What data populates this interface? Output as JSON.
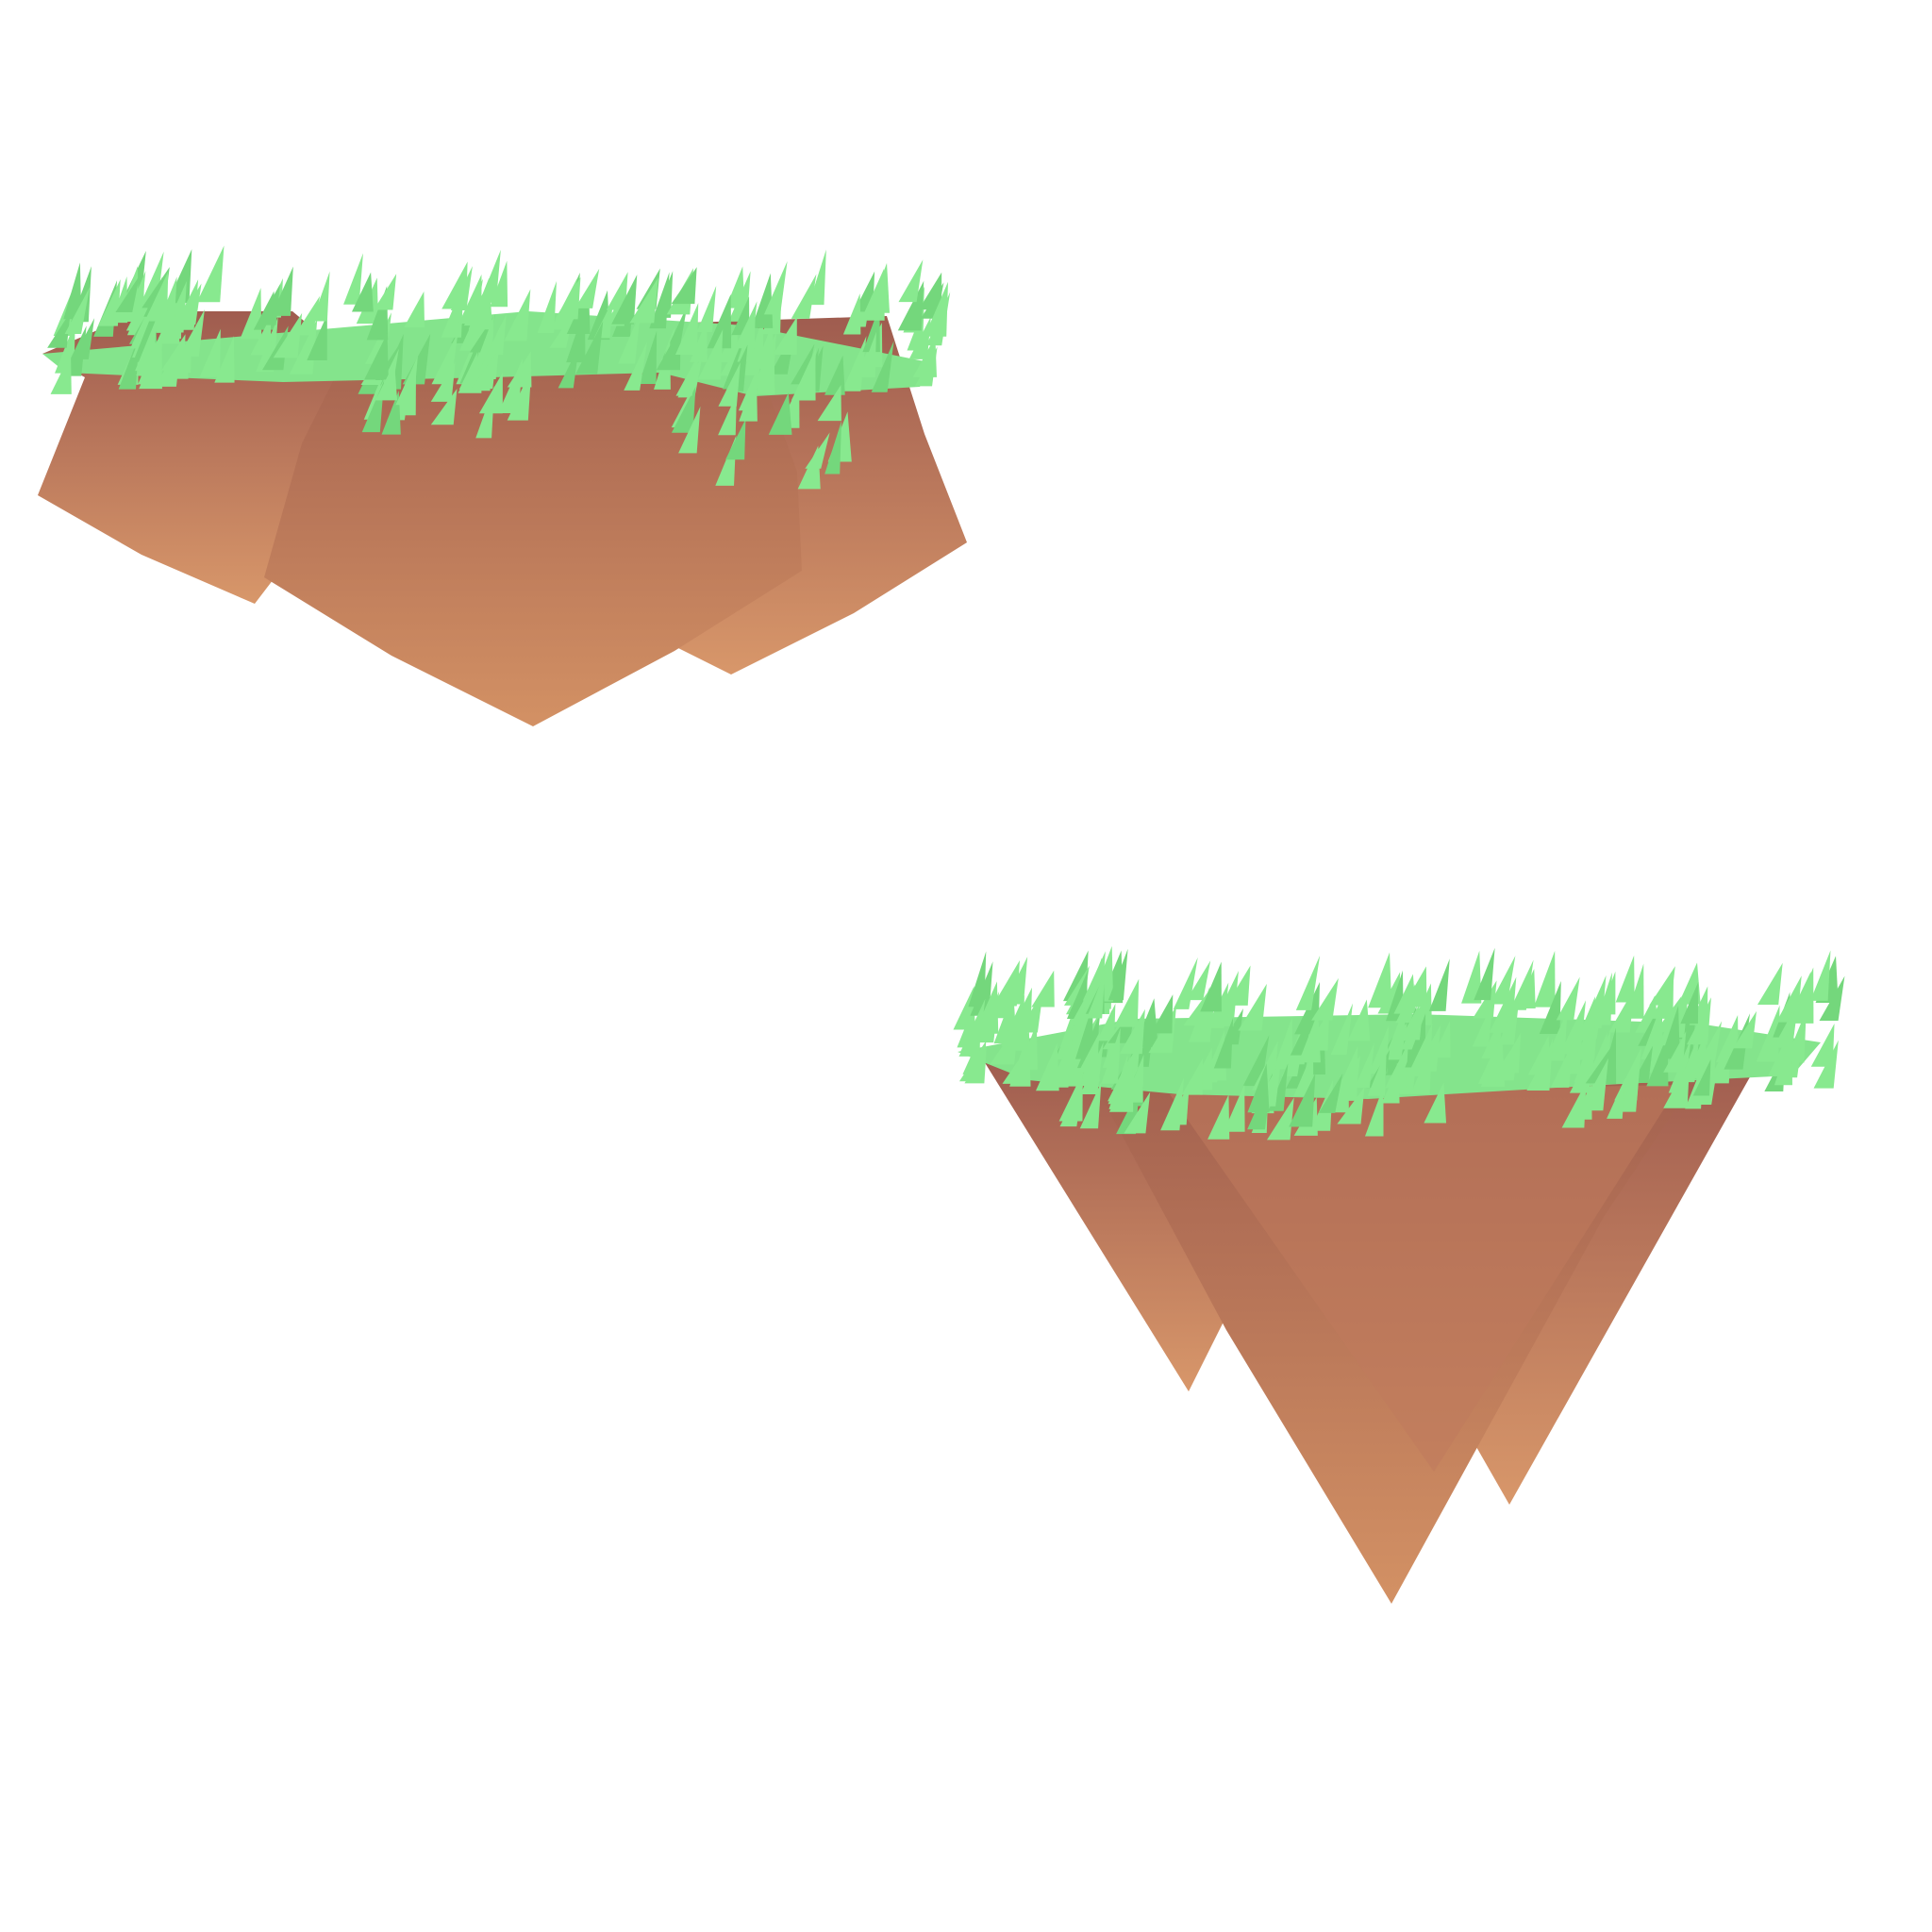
{
  "scene": {
    "background": "#ffffff",
    "assets": [
      {
        "id": "floating-island-rounded",
        "shape": "rounded rock chunk",
        "parts": [
          "left-rock",
          "center-rock",
          "right-rock",
          "grass-top"
        ]
      },
      {
        "id": "floating-island-spiked",
        "shape": "downward spikes",
        "parts": [
          "left-spike",
          "center-spike",
          "right-spike",
          "back-spike",
          "grass-top"
        ]
      }
    ],
    "colors": {
      "dirt_top": "#9f5c4f",
      "dirt_bottom": "#d8976a",
      "grass_light": "#8ee890",
      "grass_dark": "#6fd677"
    }
  }
}
